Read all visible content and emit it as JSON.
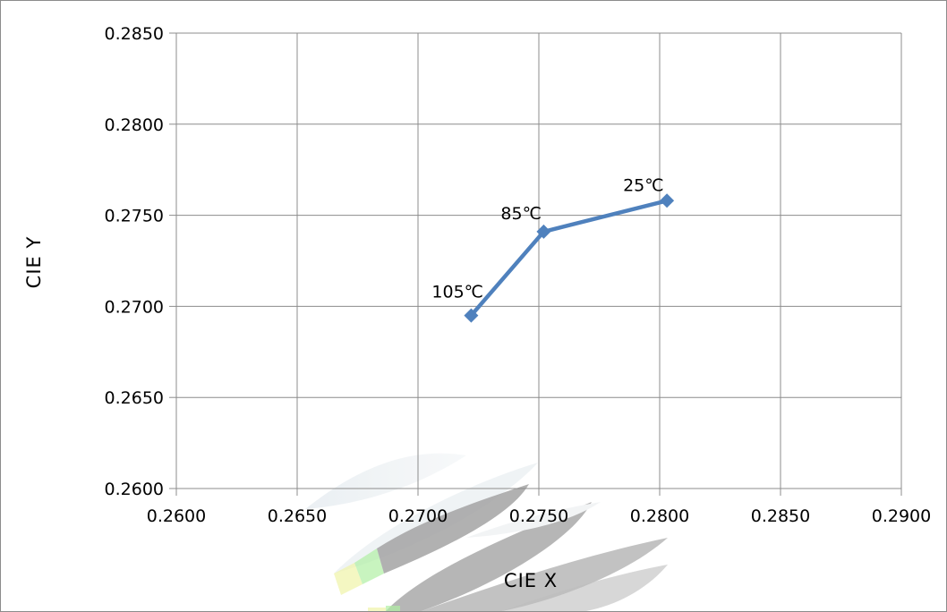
{
  "chart_data": {
    "type": "line",
    "title": "",
    "xlabel": "CIE X",
    "ylabel": "CIE Y",
    "xlim": [
      0.26,
      0.29
    ],
    "ylim": [
      0.26,
      0.285
    ],
    "x_ticks": [
      "0.2600",
      "0.2650",
      "0.2700",
      "0.2750",
      "0.2800",
      "0.2850",
      "0.2900"
    ],
    "y_ticks": [
      "0.2600",
      "0.2650",
      "0.2700",
      "0.2750",
      "0.2800",
      "0.2850"
    ],
    "grid": true,
    "legend": "none",
    "series": [
      {
        "color": "#4f81bd",
        "marker": "diamond",
        "points": [
          {
            "x": 0.2722,
            "y": 0.2695,
            "label": "105℃"
          },
          {
            "x": 0.2752,
            "y": 0.2741,
            "label": "85℃"
          },
          {
            "x": 0.2803,
            "y": 0.2758,
            "label": "25℃"
          }
        ]
      }
    ]
  }
}
